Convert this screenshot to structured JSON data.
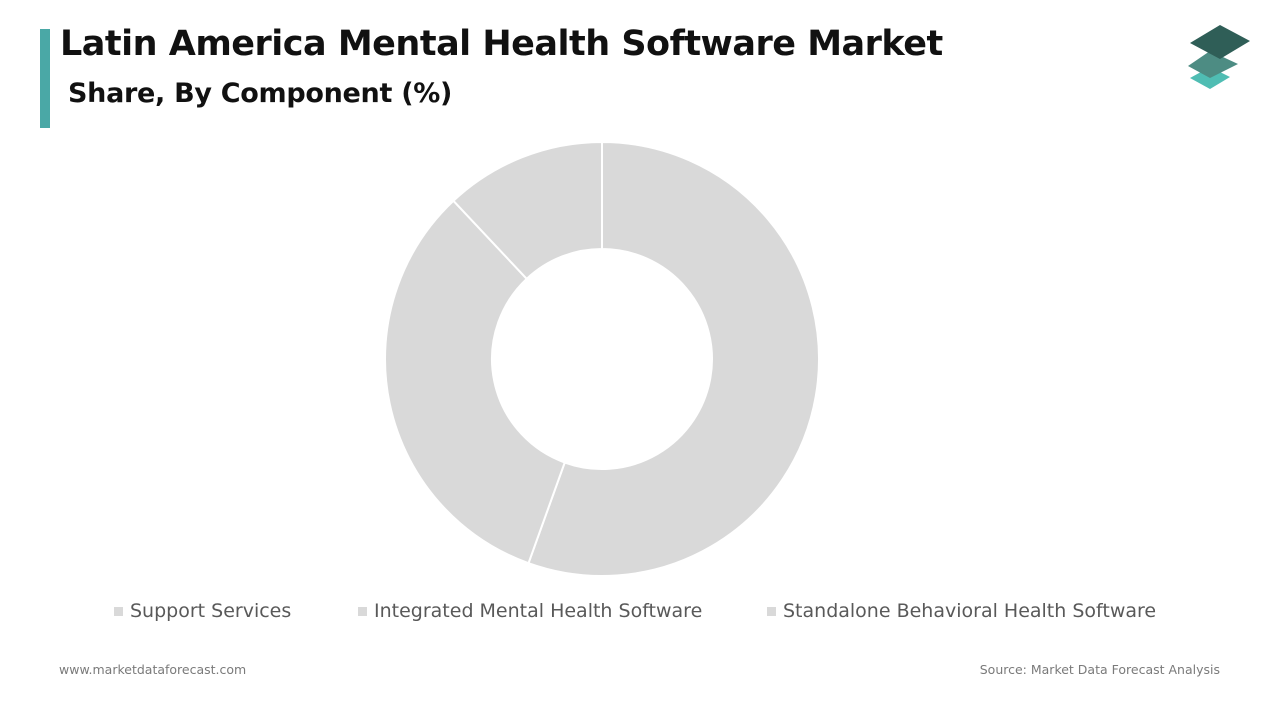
{
  "header": {
    "title": "Latin America Mental Health Software Market",
    "subtitle": "Share, By Component (%)"
  },
  "colors": {
    "accent": "#4aa8a6",
    "slice": "#d9d9d9",
    "slice_border": "#ffffff",
    "legend_swatch": "#d9d9d9",
    "logo_top": "#2f5e57",
    "logo_middle": "#4d8c83",
    "logo_bottom": "#4fbdb3"
  },
  "logo": {
    "icon": "stacked-layers-icon"
  },
  "chart_data": {
    "type": "pie",
    "variant": "donut",
    "title": "Latin America Mental Health Software Market",
    "subtitle": "Share, By Component (%)",
    "categories": [
      "Support Services",
      "Integrated Mental Health Software",
      "Standalone Behavioral Health Software"
    ],
    "values": [
      55.5,
      32.5,
      12.0
    ],
    "legend_position": "bottom",
    "data_labels": false
  },
  "footer": {
    "website": "www.marketdataforecast.com",
    "source": "Source: Market Data Forecast Analysis"
  }
}
